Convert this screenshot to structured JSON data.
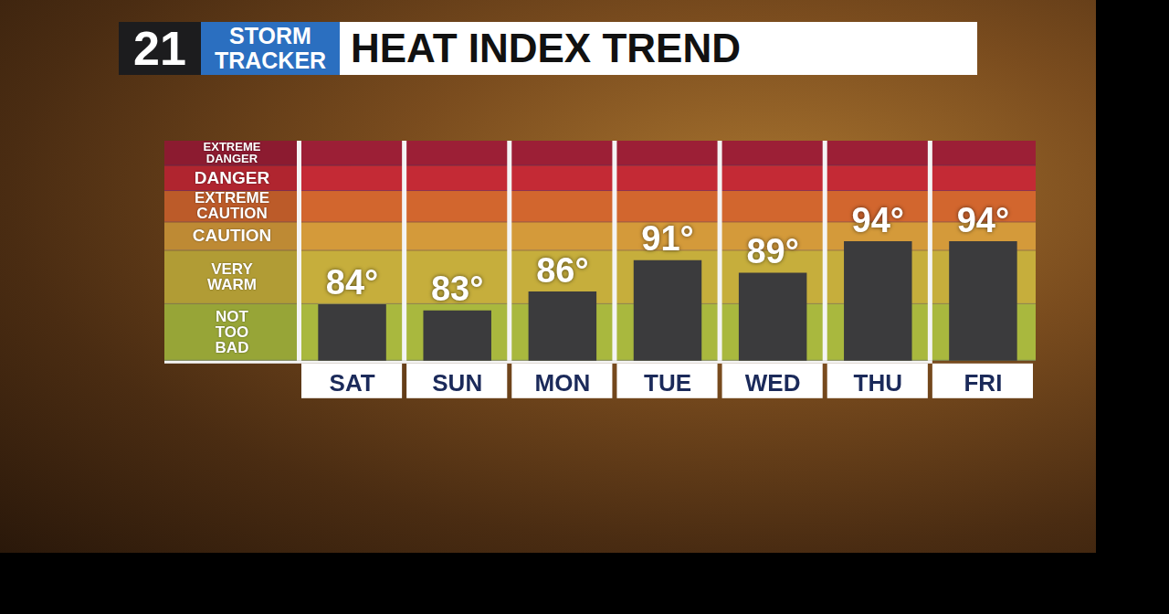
{
  "header": {
    "logo_number": "21",
    "logo_lines": [
      "STORM",
      "TRACKER"
    ]
  },
  "chart_data": {
    "type": "bar",
    "title": "HEAT INDEX TREND",
    "categories": [
      "SAT",
      "SUN",
      "MON",
      "TUE",
      "WED",
      "THU",
      "FRI"
    ],
    "values": [
      84,
      83,
      86,
      91,
      89,
      94,
      94
    ],
    "value_labels": [
      "84°",
      "83°",
      "86°",
      "91°",
      "89°",
      "94°",
      "94°"
    ],
    "color": "#3b3b3d",
    "ylim": [
      75,
      110
    ],
    "tick_labels": "x",
    "grid": false,
    "data_labels": true,
    "bands": [
      {
        "label": "EXTREME DANGER",
        "from": 106,
        "to": 110,
        "color": "#9c1f36"
      },
      {
        "label": "DANGER",
        "from": 102,
        "to": 106,
        "color": "#c42a35"
      },
      {
        "label": "EXTREME CAUTION",
        "from": 97,
        "to": 102,
        "color": "#d2662e"
      },
      {
        "label": "CAUTION",
        "from": 92.5,
        "to": 97,
        "color": "#d49a3a"
      },
      {
        "label": "VERY WARM",
        "from": 84,
        "to": 92.5,
        "color": "#c6ae3c"
      },
      {
        "label": "NOT TOO BAD",
        "from": 75,
        "to": 84,
        "color": "#a9b83e"
      }
    ]
  }
}
